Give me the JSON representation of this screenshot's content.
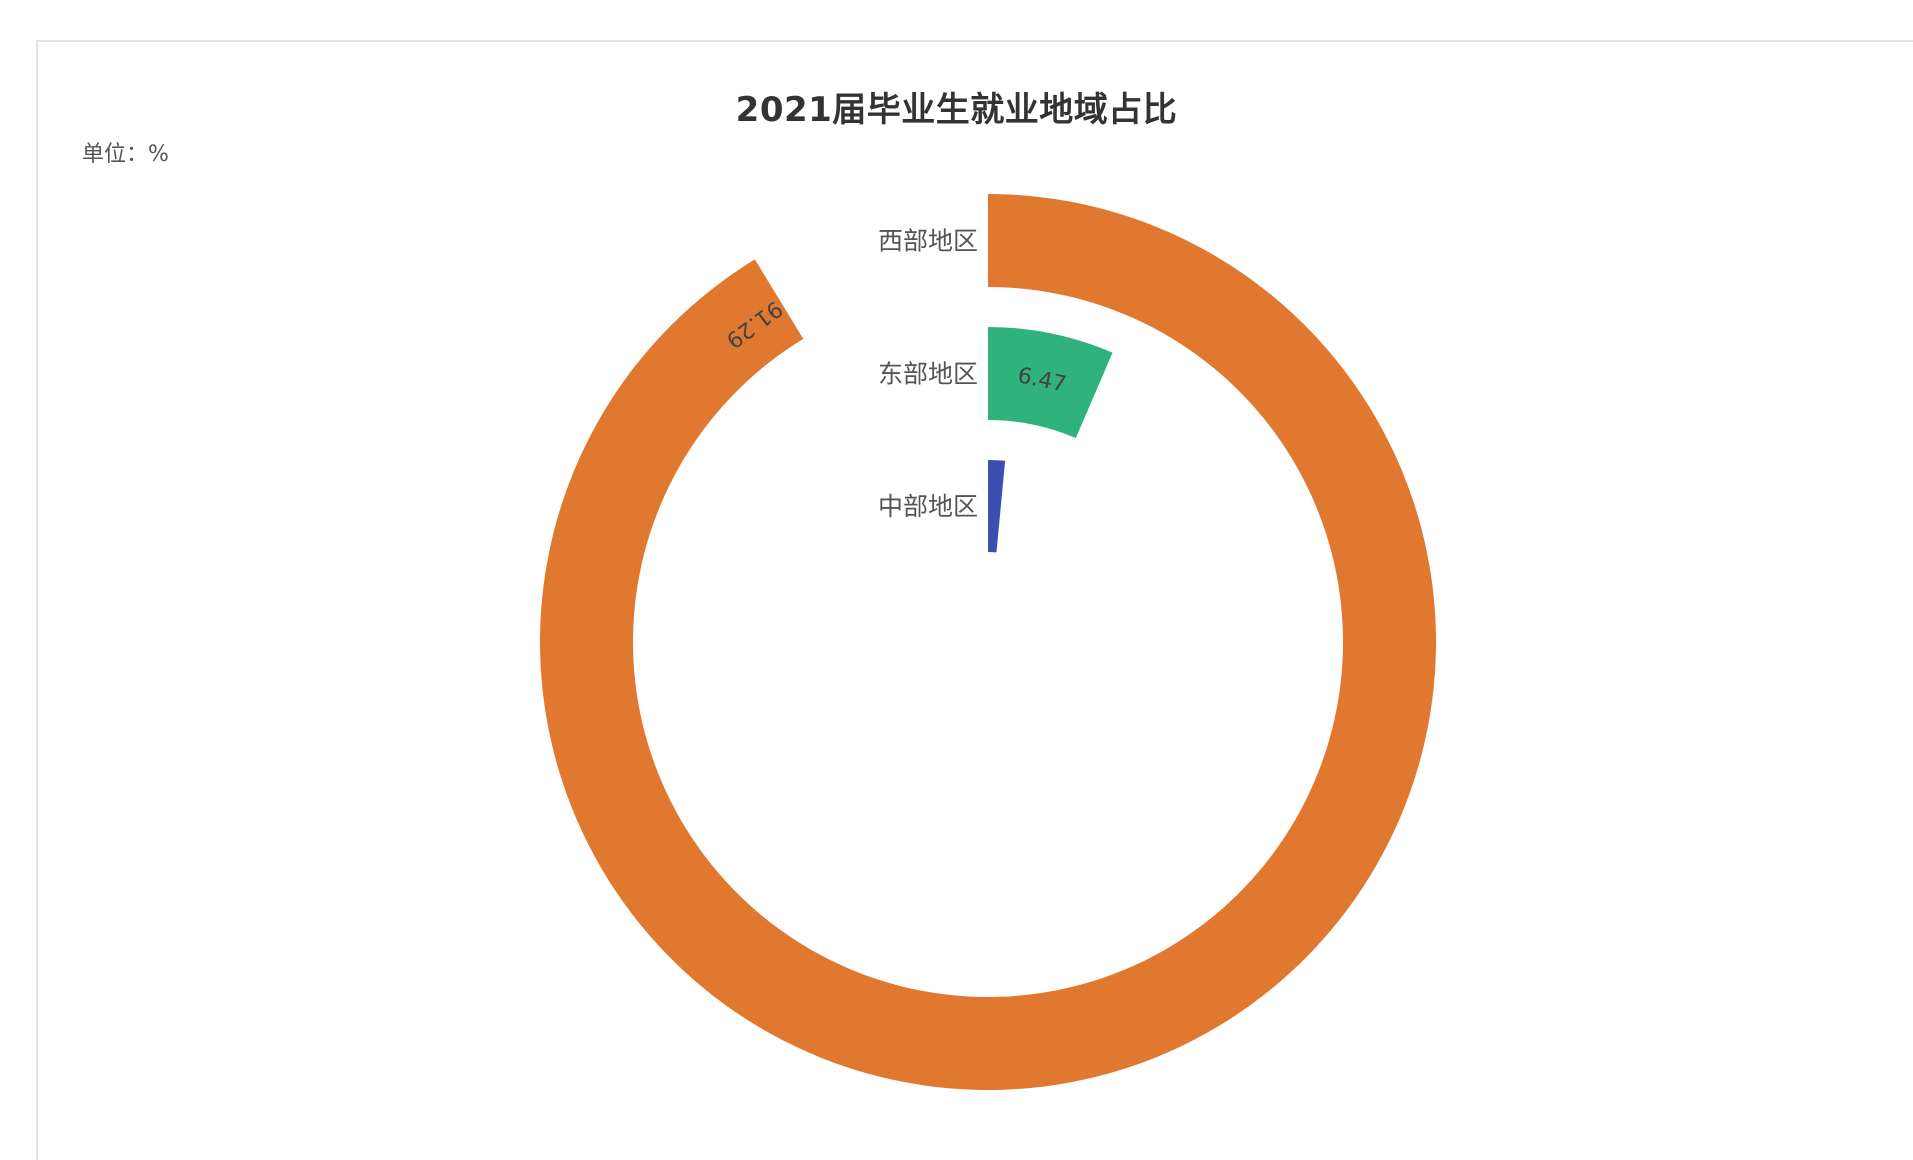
{
  "chart_data": {
    "type": "radial-bar",
    "title": "2021届毕业生就业地域占比",
    "unit_label": "单位：%",
    "max": 100,
    "categories": [
      "西部地区",
      "东部地区",
      "中部地区"
    ],
    "values": [
      91.29,
      6.47,
      1.5
    ],
    "value_labels": [
      "91.29",
      "6.47",
      ""
    ],
    "colors": [
      "#e07830",
      "#2fb37a",
      "#3a4fb0"
    ]
  }
}
